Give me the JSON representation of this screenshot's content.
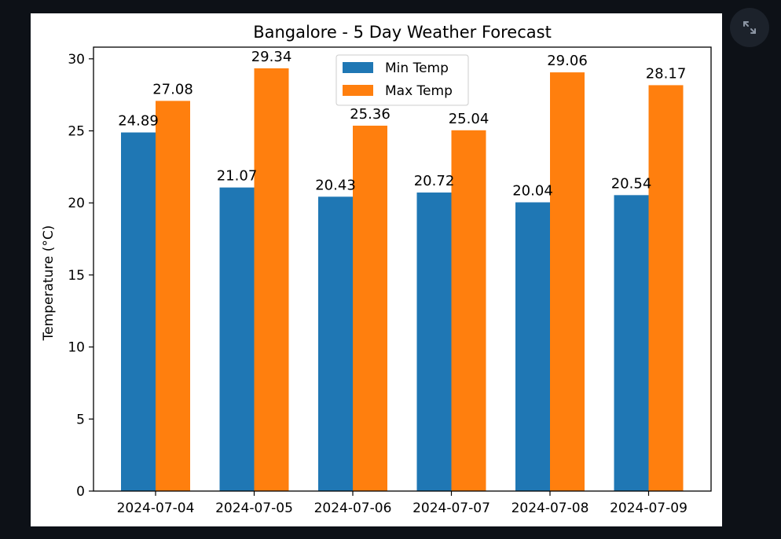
{
  "expand_icon": "expand-arrows-icon",
  "chart_data": {
    "type": "bar",
    "title": "Bangalore - 5 Day Weather Forecast",
    "xlabel": "",
    "ylabel": "Temperature (°C)",
    "categories": [
      "2024-07-04",
      "2024-07-05",
      "2024-07-06",
      "2024-07-07",
      "2024-07-08",
      "2024-07-09"
    ],
    "series": [
      {
        "name": "Min Temp",
        "color": "#1f77b4",
        "values": [
          24.89,
          21.07,
          20.43,
          20.72,
          20.04,
          20.54
        ],
        "labels": [
          "24.89",
          "21.07",
          "20.43",
          "20.72",
          "20.04",
          "20.54"
        ]
      },
      {
        "name": "Max Temp",
        "color": "#ff7f0e",
        "values": [
          27.08,
          29.34,
          25.36,
          25.04,
          29.06,
          28.17
        ],
        "labels": [
          "27.08",
          "29.34",
          "25.36",
          "25.04",
          "29.06",
          "28.17"
        ]
      }
    ],
    "ylim": [
      0,
      30.81
    ],
    "yticks": [
      0,
      5,
      10,
      15,
      20,
      25,
      30
    ],
    "ytick_labels": [
      "0",
      "5",
      "10",
      "15",
      "20",
      "25",
      "30"
    ],
    "legend": "upper-center",
    "grid": false
  }
}
